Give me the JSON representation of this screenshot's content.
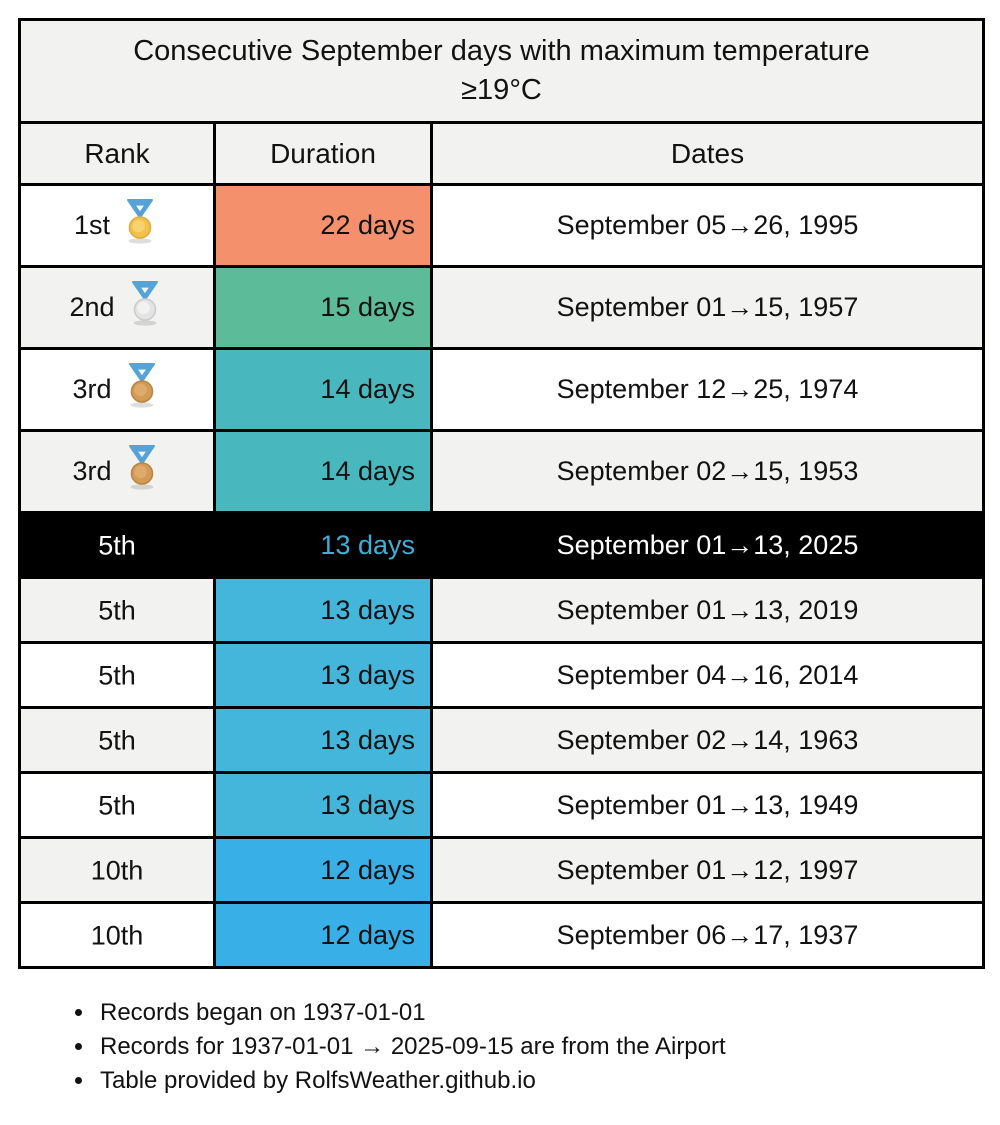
{
  "chart_data": {
    "type": "table",
    "title": "Consecutive September days with maximum temperature\n≥19°C",
    "columns": [
      "Rank",
      "Duration",
      "Dates"
    ],
    "rows": [
      {
        "rank": "1st",
        "medal_icon": "gold-medal-icon",
        "duration": "22 days",
        "duration_days": 22,
        "duration_bg": "#f5906c",
        "dates": "September 05→26, 1995",
        "highlight": false
      },
      {
        "rank": "2nd",
        "medal_icon": "silver-medal-icon",
        "duration": "15 days",
        "duration_days": 15,
        "duration_bg": "#5cbb98",
        "dates": "September 01→15, 1957",
        "highlight": false
      },
      {
        "rank": "3rd",
        "medal_icon": "bronze-medal-icon",
        "duration": "14 days",
        "duration_days": 14,
        "duration_bg": "#49b8be",
        "dates": "September 12→25, 1974",
        "highlight": false
      },
      {
        "rank": "3rd",
        "medal_icon": "bronze-medal-icon",
        "duration": "14 days",
        "duration_days": 14,
        "duration_bg": "#49b8be",
        "dates": "September 02→15, 1953",
        "highlight": false
      },
      {
        "rank": "5th",
        "medal_icon": null,
        "duration": "13 days",
        "duration_days": 13,
        "duration_bg": "#000000",
        "duration_text": "#3fafd9",
        "dates": "September 01→13, 2025",
        "highlight": true
      },
      {
        "rank": "5th",
        "medal_icon": null,
        "duration": "13 days",
        "duration_days": 13,
        "duration_bg": "#44b5db",
        "dates": "September 01→13, 2019",
        "highlight": false
      },
      {
        "rank": "5th",
        "medal_icon": null,
        "duration": "13 days",
        "duration_days": 13,
        "duration_bg": "#44b5db",
        "dates": "September 04→16, 2014",
        "highlight": false
      },
      {
        "rank": "5th",
        "medal_icon": null,
        "duration": "13 days",
        "duration_days": 13,
        "duration_bg": "#44b5db",
        "dates": "September 02→14, 1963",
        "highlight": false
      },
      {
        "rank": "5th",
        "medal_icon": null,
        "duration": "13 days",
        "duration_days": 13,
        "duration_bg": "#44b5db",
        "dates": "September 01→13, 1949",
        "highlight": false
      },
      {
        "rank": "10th",
        "medal_icon": null,
        "duration": "12 days",
        "duration_days": 12,
        "duration_bg": "#38b0e7",
        "dates": "September 01→12, 1997",
        "highlight": false
      },
      {
        "rank": "10th",
        "medal_icon": null,
        "duration": "12 days",
        "duration_days": 12,
        "duration_bg": "#38b0e7",
        "dates": "September 06→17, 1937",
        "highlight": false
      }
    ],
    "notes": [
      "Records began on 1937-01-01",
      "Records for 1937-01-01 → 2025-09-15 are from the Airport",
      "Table provided by RolfsWeather.github.io"
    ]
  },
  "icons": {
    "gold-medal-icon": {
      "ribbon": "#55a3d8",
      "disc": "#f0c24b",
      "shine": "#f6d36e",
      "rim": "#e2aa3e"
    },
    "silver-medal-icon": {
      "ribbon": "#55a3d8",
      "disc": "#e4e4e4",
      "shine": "#f2f2f2",
      "rim": "#cccccc"
    },
    "bronze-medal-icon": {
      "ribbon": "#55a3d8",
      "disc": "#d49b56",
      "shine": "#deab6c",
      "rim": "#bb8440"
    }
  },
  "colors": {
    "panel_bg": "#f2f2f1",
    "row_bg": "#ffffff",
    "row_alt_bg": "#f2f2f1",
    "border": "#000000",
    "text": "#121212",
    "highlight_bg": "#000000",
    "highlight_text": "#ffffff",
    "highlight_duration_text": "#3fafd9"
  }
}
